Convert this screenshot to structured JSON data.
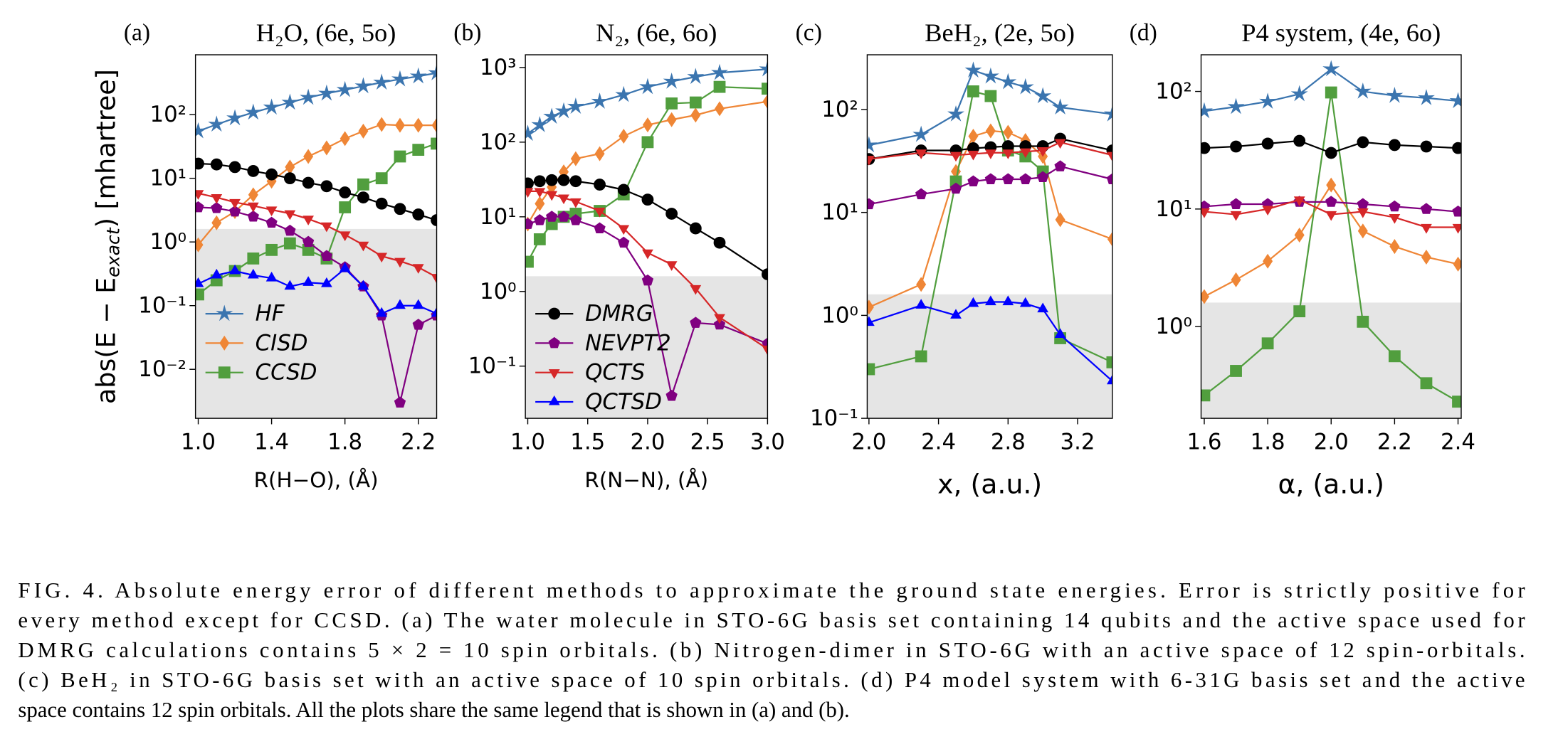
{
  "chart_data": [
    {
      "type": "line",
      "panel": "(a)",
      "title": "H₂O, (6e, 5o)",
      "xlabel": "R(H−O), (Å)",
      "ylabel": {
        "main": "abs(E − E",
        "sub": "exact",
        "tail": ") [mhartree]"
      },
      "x": [
        1.0,
        1.1,
        1.2,
        1.3,
        1.4,
        1.5,
        1.6,
        1.7,
        1.8,
        1.9,
        2.0,
        2.1,
        2.2,
        2.3
      ],
      "xlim": [
        0.985,
        2.3
      ],
      "xticks": [
        {
          "value": 1,
          "label": "1.0"
        },
        1.4,
        1.8,
        2.2
      ],
      "ylim": [
        0.0017,
        870
      ],
      "log_y": true,
      "yticks": [
        {
          "value": 0.01,
          "label": "10⁻²"
        },
        {
          "value": 0.1,
          "label": "10⁻¹"
        },
        {
          "value": 1,
          "label": "10⁰"
        },
        {
          "value": 10,
          "label": "10¹"
        },
        {
          "value": 100,
          "label": "10²"
        }
      ],
      "shaded_below": 1.6,
      "legend": "lower left",
      "series": [
        {
          "name": "HF",
          "color": "#3b75af",
          "marker": "star",
          "in_legend": true,
          "values": [
            55,
            70,
            88,
            108,
            130,
            155,
            185,
            215,
            245,
            280,
            320,
            360,
            400,
            450
          ]
        },
        {
          "name": "CISD",
          "color": "#ef8636",
          "marker": "diamond",
          "in_legend": true,
          "values": [
            0.9,
            2,
            3,
            5.5,
            9,
            15,
            22,
            30,
            42,
            55,
            70,
            68,
            68,
            68
          ]
        },
        {
          "name": "CCSD",
          "color": "#519e3e",
          "marker": "square",
          "in_legend": true,
          "values": [
            0.15,
            0.25,
            0.35,
            0.55,
            0.75,
            0.95,
            0.75,
            0.55,
            3.5,
            8,
            10,
            22,
            28,
            35
          ]
        },
        {
          "name": "DMRG",
          "color": "#000000",
          "marker": "circle",
          "in_legend": false,
          "values": [
            17,
            16.5,
            15,
            13,
            11.5,
            10,
            8.5,
            7.5,
            6,
            5,
            4,
            3.3,
            2.7,
            2.2
          ]
        },
        {
          "name": "NEVPT2",
          "color": "#800080",
          "marker": "pentagon",
          "in_legend": false,
          "values": [
            3.5,
            3.4,
            3,
            2.5,
            2,
            1.5,
            1,
            0.6,
            0.4,
            0.2,
            0.07,
            0.003,
            0.05,
            0.07
          ]
        },
        {
          "name": "QCTS",
          "color": "#d62728",
          "marker": "triangle_down",
          "in_legend": false,
          "values": [
            5.8,
            5,
            4.2,
            3.7,
            3.2,
            2.8,
            2.3,
            1.8,
            1.3,
            0.9,
            0.6,
            0.5,
            0.4,
            0.28
          ]
        },
        {
          "name": "QCTSD",
          "color": "#0000ff",
          "marker": "triangle_up",
          "in_legend": false,
          "values": [
            0.22,
            0.3,
            0.35,
            0.3,
            0.27,
            0.2,
            0.23,
            0.22,
            0.38,
            0.2,
            0.075,
            0.1,
            0.1,
            0.075
          ]
        }
      ]
    },
    {
      "type": "line",
      "panel": "(b)",
      "title": "N₂, (6e, 6o)",
      "xlabel": "R(N−N), (Å)",
      "x": [
        1.0,
        1.1,
        1.2,
        1.3,
        1.4,
        1.6,
        1.8,
        2.0,
        2.2,
        2.4,
        2.6,
        3.0
      ],
      "xlim": [
        0.98,
        3.0
      ],
      "xticks": [
        {
          "value": 1,
          "label": "1.0"
        },
        1.5,
        {
          "value": 2,
          "label": "2.0"
        },
        2.5,
        {
          "value": 3,
          "label": "3.0"
        }
      ],
      "ylim": [
        0.02,
        1480
      ],
      "log_y": true,
      "yticks": [
        {
          "value": 0.1,
          "label": "10⁻¹"
        },
        {
          "value": 1,
          "label": "10⁰"
        },
        {
          "value": 10,
          "label": "10¹"
        },
        {
          "value": 100,
          "label": "10²"
        },
        {
          "value": 1000,
          "label": "10³"
        }
      ],
      "shaded_below": 1.6,
      "legend": "lower left",
      "series": [
        {
          "name": "HF",
          "color": "#3b75af",
          "marker": "star",
          "in_legend": false,
          "values": [
            130,
            170,
            220,
            260,
            300,
            350,
            430,
            550,
            650,
            750,
            850,
            950
          ]
        },
        {
          "name": "CISD",
          "color": "#ef8636",
          "marker": "diamond",
          "in_legend": false,
          "values": [
            8,
            15,
            25,
            40,
            60,
            70,
            120,
            170,
            200,
            230,
            280,
            350
          ]
        },
        {
          "name": "CCSD",
          "color": "#519e3e",
          "marker": "square",
          "in_legend": false,
          "values": [
            2.5,
            5,
            8,
            10,
            11,
            12,
            20,
            100,
            330,
            340,
            550,
            520
          ]
        },
        {
          "name": "DMRG",
          "color": "#000000",
          "marker": "circle",
          "in_legend": true,
          "values": [
            28,
            30,
            31,
            31,
            30,
            27,
            23,
            17,
            11,
            7,
            4.5,
            1.7
          ]
        },
        {
          "name": "NEVPT2",
          "color": "#800080",
          "marker": "pentagon",
          "in_legend": true,
          "values": [
            8,
            9,
            10,
            10,
            9,
            7,
            4.5,
            1.4,
            0.04,
            0.38,
            0.36,
            0.2
          ]
        },
        {
          "name": "QCTS",
          "color": "#d62728",
          "marker": "triangle_down",
          "in_legend": true,
          "values": [
            22,
            22,
            20,
            18,
            16,
            12,
            7,
            3.3,
            2.3,
            1.1,
            0.45,
            0.17
          ]
        },
        {
          "name": "QCTSD",
          "color": "#0000ff",
          "marker": "triangle_up",
          "in_legend": true,
          "values": [
            null,
            null,
            null,
            null,
            null,
            null,
            null,
            null,
            null,
            null,
            null,
            null
          ]
        }
      ]
    },
    {
      "type": "line",
      "panel": "(c)",
      "title": "BeH₂, (2e, 5o)",
      "xlabel": "x, (a.u.)",
      "x": [
        2.0,
        2.3,
        2.5,
        2.6,
        2.7,
        2.8,
        2.9,
        3.0,
        3.1,
        3.4
      ],
      "xlim": [
        1.99,
        3.4
      ],
      "xticks": [
        {
          "value": 2,
          "label": "2.0"
        },
        2.4,
        2.8,
        3.2
      ],
      "ylim": [
        0.1,
        340
      ],
      "log_y": true,
      "yticks": [
        {
          "value": 0.1,
          "label": "10⁻¹"
        },
        {
          "value": 1,
          "label": "10⁰"
        },
        {
          "value": 10,
          "label": "10¹"
        },
        {
          "value": 100,
          "label": "10²"
        }
      ],
      "shaded_below": 1.6,
      "series": [
        {
          "name": "HF",
          "color": "#3b75af",
          "marker": "star",
          "in_legend": false,
          "values": [
            45,
            57,
            90,
            240,
            210,
            185,
            165,
            135,
            105,
            90
          ]
        },
        {
          "name": "CISD",
          "color": "#ef8636",
          "marker": "diamond",
          "in_legend": false,
          "values": [
            1.2,
            2,
            25,
            55,
            62,
            60,
            50,
            35,
            8.5,
            5.5
          ]
        },
        {
          "name": "CCSD",
          "color": "#519e3e",
          "marker": "square",
          "in_legend": false,
          "values": [
            0.3,
            0.4,
            20,
            150,
            135,
            40,
            35,
            25,
            0.6,
            0.35
          ]
        },
        {
          "name": "DMRG",
          "color": "#000000",
          "marker": "circle",
          "in_legend": false,
          "values": [
            33,
            40,
            40,
            42,
            43,
            44,
            44,
            44,
            52,
            40
          ]
        },
        {
          "name": "NEVPT2",
          "color": "#800080",
          "marker": "pentagon",
          "in_legend": false,
          "values": [
            12,
            15,
            17,
            20,
            21,
            21,
            21,
            22,
            28,
            21
          ]
        },
        {
          "name": "QCTS",
          "color": "#d62728",
          "marker": "triangle_down",
          "in_legend": false,
          "values": [
            33,
            38,
            36,
            37,
            38,
            38,
            39,
            40,
            48,
            36
          ]
        },
        {
          "name": "QCTSD",
          "color": "#0000ff",
          "marker": "triangle_up",
          "in_legend": false,
          "values": [
            0.85,
            1.25,
            1.0,
            1.3,
            1.35,
            1.35,
            1.3,
            1.15,
            0.65,
            0.23
          ]
        }
      ]
    },
    {
      "type": "line",
      "panel": "(d)",
      "title": "P4 system, (4e, 6o)",
      "xlabel": "α, (a.u.)",
      "x": [
        1.6,
        1.7,
        1.8,
        1.9,
        2.0,
        2.1,
        2.2,
        2.3,
        2.4
      ],
      "xlim": [
        1.59,
        2.41
      ],
      "xticks": [
        1.6,
        1.8,
        {
          "value": 2,
          "label": "2.0"
        },
        2.2,
        2.4
      ],
      "ylim": [
        0.166,
        205
      ],
      "log_y": true,
      "yticks": [
        {
          "value": 1,
          "label": "10⁰"
        },
        {
          "value": 10,
          "label": "10¹"
        },
        {
          "value": 100,
          "label": "10²"
        }
      ],
      "shaded_below": 1.6,
      "series": [
        {
          "name": "HF",
          "color": "#3b75af",
          "marker": "star",
          "in_legend": false,
          "values": [
            68,
            74,
            82,
            95,
            155,
            100,
            92,
            88,
            83
          ]
        },
        {
          "name": "CISD",
          "color": "#ef8636",
          "marker": "diamond",
          "in_legend": false,
          "values": [
            1.8,
            2.5,
            3.6,
            6,
            16,
            6.5,
            4.8,
            3.9,
            3.4
          ]
        },
        {
          "name": "CCSD",
          "color": "#519e3e",
          "marker": "square",
          "in_legend": false,
          "values": [
            0.26,
            0.42,
            0.72,
            1.35,
            98,
            1.1,
            0.56,
            0.33,
            0.23
          ]
        },
        {
          "name": "DMRG",
          "color": "#000000",
          "marker": "circle",
          "in_legend": false,
          "values": [
            33,
            34,
            36,
            38,
            30,
            37,
            35,
            34,
            33
          ]
        },
        {
          "name": "NEVPT2",
          "color": "#800080",
          "marker": "pentagon",
          "in_legend": false,
          "values": [
            10.5,
            11,
            11,
            11.5,
            11.5,
            11,
            10.5,
            10,
            9.5
          ]
        },
        {
          "name": "QCTS",
          "color": "#d62728",
          "marker": "triangle_down",
          "in_legend": false,
          "values": [
            9.5,
            9,
            10,
            12,
            9,
            9.5,
            8.5,
            7,
            7
          ]
        },
        {
          "name": "QCTSD",
          "color": "#0000ff",
          "marker": "triangle_up",
          "in_legend": false,
          "values": [
            null,
            null,
            null,
            null,
            null,
            null,
            null,
            null,
            null
          ]
        }
      ]
    }
  ],
  "caption_lines": [
    "FIG. 4.    Absolute energy error of different methods to approximate the ground state energies. Error is strictly positive for",
    "every method except for CCSD. (a) The water molecule in STO-6G basis set containing 14 qubits and the active space used for",
    "DMRG calculations contains 5 × 2 = 10 spin orbitals. (b) Nitrogen-dimer in STO-6G with an active space of 12 spin-orbitals.",
    "(c) BeH₂ in STO-6G basis set with an active space of 10 spin orbitals. (d) P4 model system with 6-31G basis set and the active",
    "space contains 12 spin orbitals. All the plots share the same legend that is shown in (a) and (b)."
  ]
}
